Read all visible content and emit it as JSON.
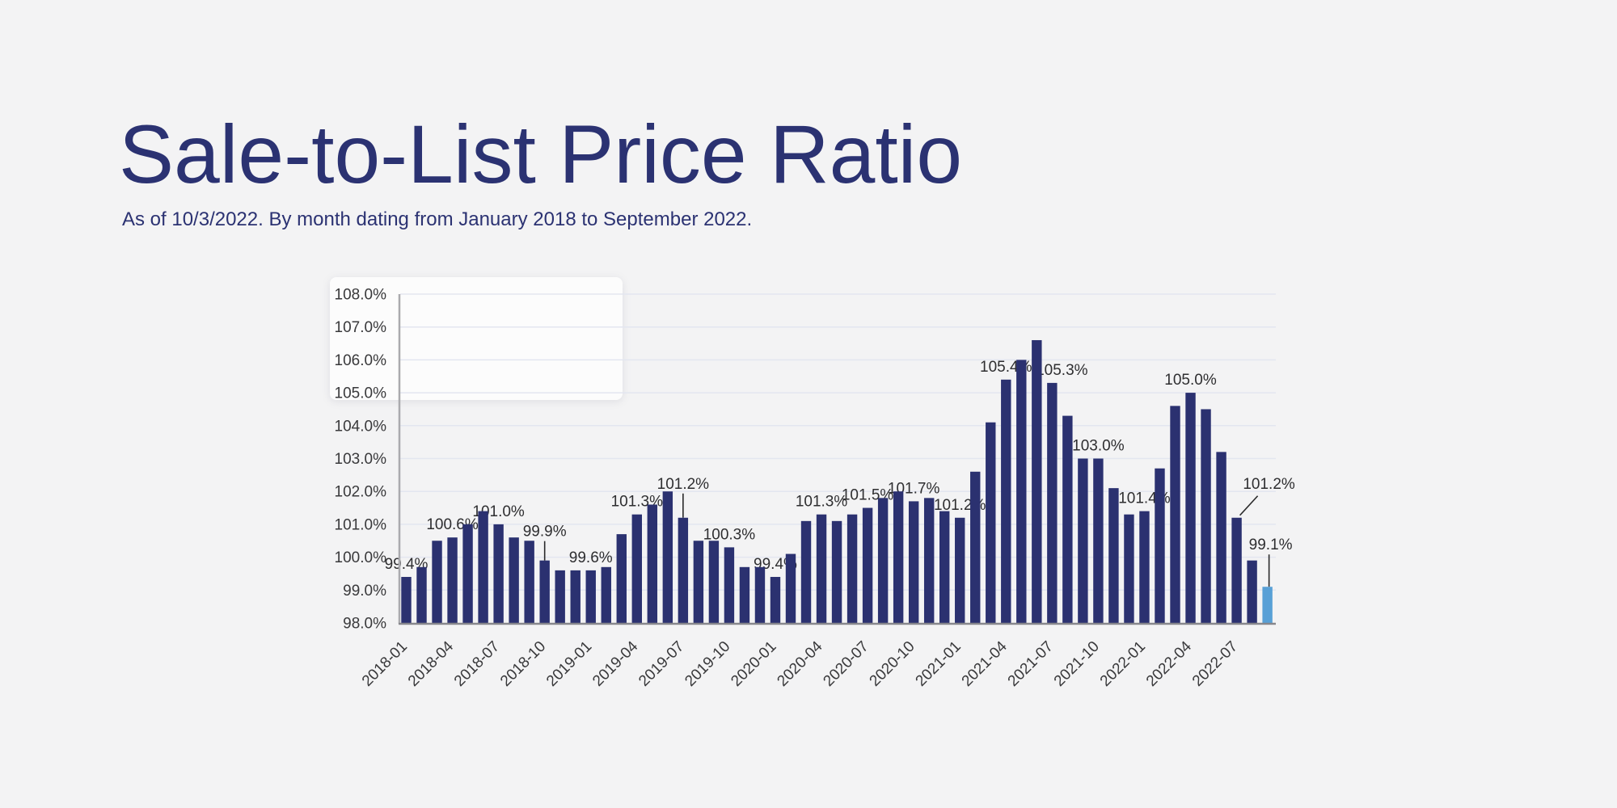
{
  "header": {
    "title": "Sale-to-List Price Ratio",
    "subtitle": "As of 10/3/2022. By month dating from January 2018 to September 2022."
  },
  "colors": {
    "title_text": "#2b3272",
    "bar": "#2b3170",
    "bar_highlight": "#58a0d6",
    "axis_text": "#39393b",
    "gridline": "#e3e6f0",
    "x_axis_line": "#87878c",
    "y_axis_line": "#aaaaae",
    "leader_line": "#2a2a2a",
    "page_background": "#f3f3f4"
  },
  "chart_data": {
    "type": "bar",
    "title": "Sale-to-List Price Ratio",
    "subtitle": "As of 10/3/2022. By month dating from January 2018 to September 2022.",
    "xlabel": "",
    "ylabel": "",
    "ylim": [
      98,
      108
    ],
    "ytick_step": 1,
    "ytick_suffix": "%",
    "grid": true,
    "legend": "none",
    "highlight_index": 56,
    "categories": [
      "2018-01",
      "2018-02",
      "2018-03",
      "2018-04",
      "2018-05",
      "2018-06",
      "2018-07",
      "2018-08",
      "2018-09",
      "2018-10",
      "2018-11",
      "2018-12",
      "2019-01",
      "2019-02",
      "2019-03",
      "2019-04",
      "2019-05",
      "2019-06",
      "2019-07",
      "2019-08",
      "2019-09",
      "2019-10",
      "2019-11",
      "2019-12",
      "2020-01",
      "2020-02",
      "2020-03",
      "2020-04",
      "2020-05",
      "2020-06",
      "2020-07",
      "2020-08",
      "2020-09",
      "2020-10",
      "2020-11",
      "2020-12",
      "2021-01",
      "2021-02",
      "2021-03",
      "2021-04",
      "2021-05",
      "2021-06",
      "2021-07",
      "2021-08",
      "2021-09",
      "2021-10",
      "2021-11",
      "2021-12",
      "2022-01",
      "2022-02",
      "2022-03",
      "2022-04",
      "2022-05",
      "2022-06",
      "2022-07",
      "2022-08",
      "2022-09"
    ],
    "values": [
      99.4,
      99.7,
      100.5,
      100.6,
      101.0,
      101.4,
      101.0,
      100.6,
      100.5,
      99.9,
      99.6,
      99.6,
      99.6,
      99.7,
      100.7,
      101.3,
      101.6,
      102.0,
      101.2,
      100.5,
      100.5,
      100.3,
      99.7,
      99.7,
      99.4,
      100.1,
      101.1,
      101.3,
      101.1,
      101.3,
      101.5,
      101.8,
      102.0,
      101.7,
      101.8,
      101.4,
      101.2,
      102.6,
      104.1,
      105.4,
      106.0,
      106.6,
      105.3,
      104.3,
      103.0,
      103.0,
      102.1,
      101.3,
      101.4,
      102.7,
      104.6,
      105.0,
      104.5,
      103.2,
      101.2,
      99.9,
      99.1
    ],
    "xtick_indices": [
      0,
      3,
      6,
      9,
      12,
      15,
      18,
      21,
      24,
      27,
      30,
      33,
      36,
      39,
      42,
      45,
      48,
      51,
      54
    ],
    "xtick_labels": [
      "2018-01",
      "2018-04",
      "2018-07",
      "2018-10",
      "2019-01",
      "2019-04",
      "2019-07",
      "2019-10",
      "2020-01",
      "2020-04",
      "2020-07",
      "2020-10",
      "2021-01",
      "2021-04",
      "2021-07",
      "2021-10",
      "2022-01",
      "2022-04",
      "2022-07"
    ],
    "ytick_labels": [
      "98.0%",
      "99.0%",
      "100.0%",
      "101.0%",
      "102.0%",
      "103.0%",
      "104.0%",
      "105.0%",
      "106.0%",
      "107.0%",
      "108.0%"
    ],
    "data_labels": [
      {
        "index": 0,
        "text": "99.4%"
      },
      {
        "index": 3,
        "text": "100.6%"
      },
      {
        "index": 6,
        "text": "101.0%"
      },
      {
        "index": 9,
        "text": "99.9%",
        "leader": "vertical",
        "lift": 30
      },
      {
        "index": 12,
        "text": "99.6%"
      },
      {
        "index": 15,
        "text": "101.3%"
      },
      {
        "index": 18,
        "text": "101.2%",
        "leader": "vertical",
        "lift": 36
      },
      {
        "index": 21,
        "text": "100.3%"
      },
      {
        "index": 24,
        "text": "99.4%"
      },
      {
        "index": 27,
        "text": "101.3%"
      },
      {
        "index": 30,
        "text": "101.5%"
      },
      {
        "index": 33,
        "text": "101.7%"
      },
      {
        "index": 36,
        "text": "101.2%"
      },
      {
        "index": 39,
        "text": "105.4%"
      },
      {
        "index": 42,
        "text": "105.3%",
        "dx": 12
      },
      {
        "index": 45,
        "text": "103.0%"
      },
      {
        "index": 48,
        "text": "101.4%"
      },
      {
        "index": 51,
        "text": "105.0%"
      },
      {
        "index": 54,
        "text": "101.2%",
        "leader": "diagonal",
        "dx": 40,
        "lift": 36
      },
      {
        "index": 56,
        "text": "99.1%",
        "leader": "vertical",
        "dx": 4,
        "lift": 46
      }
    ]
  }
}
